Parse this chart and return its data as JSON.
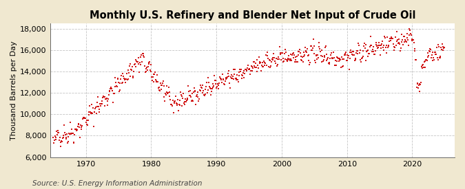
{
  "title": "Monthly U.S. Refinery and Blender Net Input of Crude Oil",
  "ylabel": "Thousand Barrels per Day",
  "source": "Source: U.S. Energy Information Administration",
  "ylim": [
    6000,
    18500
  ],
  "yticks": [
    6000,
    8000,
    10000,
    12000,
    14000,
    16000,
    18000
  ],
  "xticks": [
    1970,
    1980,
    1990,
    2000,
    2010,
    2020
  ],
  "xlim": [
    1964.5,
    2026.5
  ],
  "marker_color": "#cc0000",
  "plot_bg_color": "#ffffff",
  "outer_bg_color": "#f0e8d0",
  "grid_color": "#aaaaaa",
  "title_fontsize": 10.5,
  "label_fontsize": 8,
  "tick_fontsize": 8,
  "source_fontsize": 7.5
}
